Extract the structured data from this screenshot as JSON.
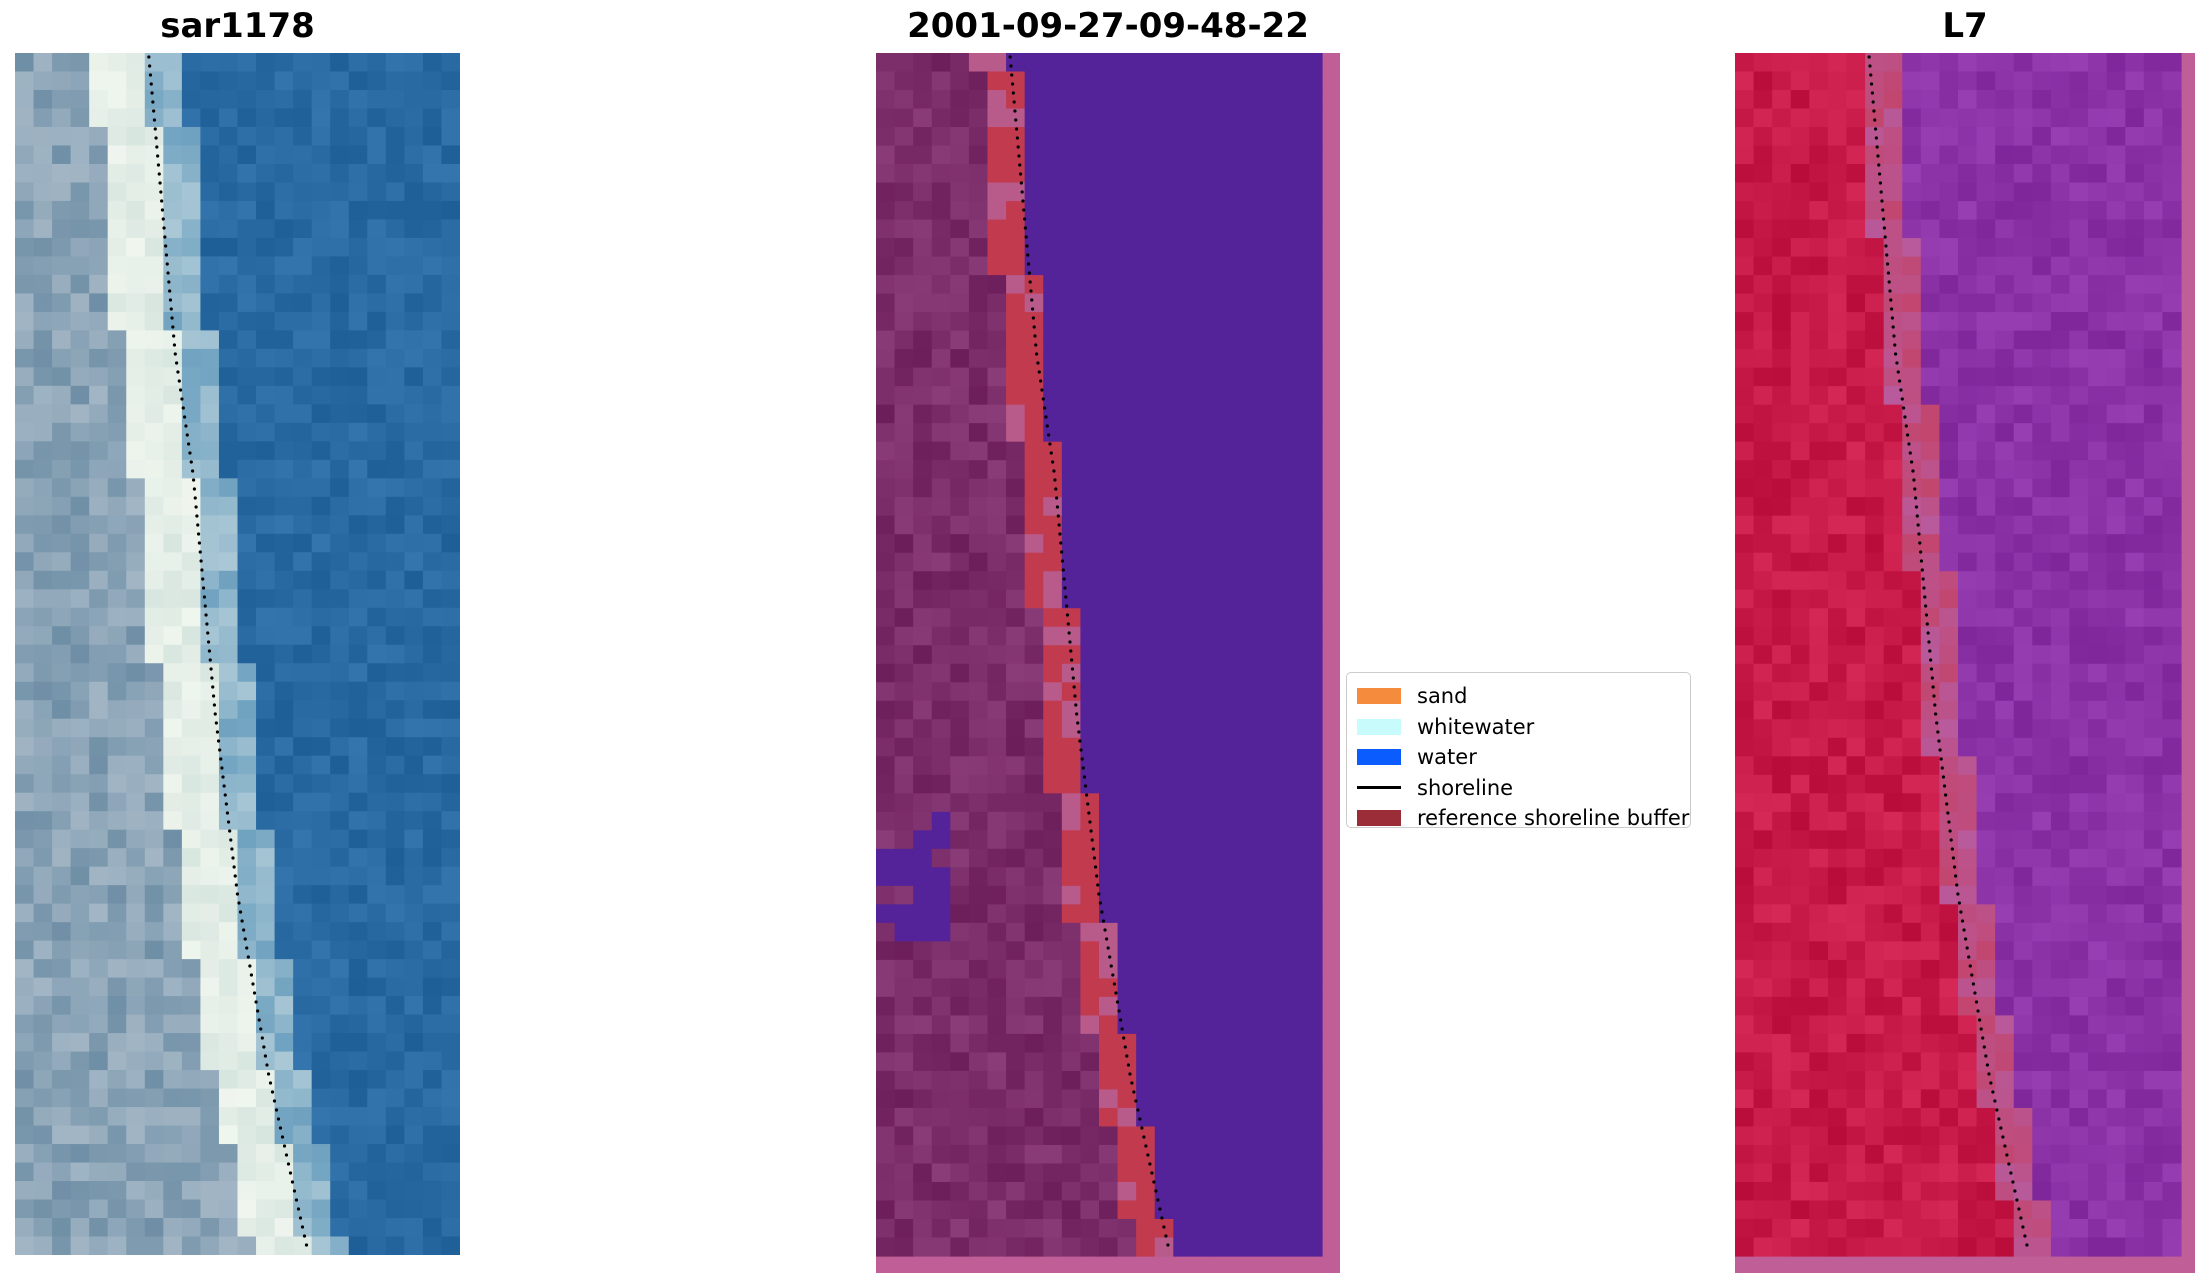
{
  "panels": {
    "rgb": {
      "title": "sar1178"
    },
    "classification": {
      "title": "2001-09-27-09-48-22"
    },
    "mndwi": {
      "title": "L7"
    }
  },
  "legend": {
    "items": [
      {
        "label": "sand",
        "color": "#f58b3c",
        "kind": "patch"
      },
      {
        "label": "whitewater",
        "color": "#c8fcfc",
        "kind": "patch"
      },
      {
        "label": "water",
        "color": "#0a5cff",
        "kind": "patch"
      },
      {
        "label": "shoreline",
        "color": "#000000",
        "kind": "line"
      },
      {
        "label": "reference shoreline buffer",
        "color": "#9b2d38",
        "kind": "patch"
      }
    ]
  },
  "colors": {
    "buffer_border": "#c05f97",
    "class_water": "#542299",
    "class_land": "#7b2d6a",
    "class_buffer_red": "#c23a4e",
    "rgb_ocean": "#2a6aa3",
    "rgb_surf": "#f0f6ee",
    "mndwi_land": "#c81a48",
    "mndwi_water": "#8a32a6"
  }
}
